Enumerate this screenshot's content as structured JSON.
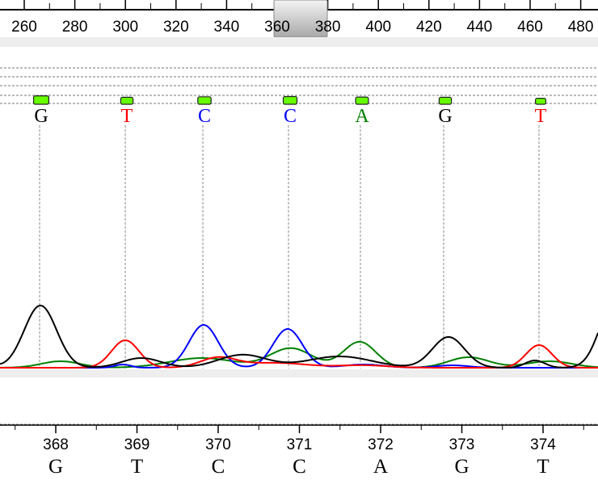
{
  "top_scale": {
    "ticks": [
      "260",
      "280",
      "300",
      "320",
      "340",
      "360",
      "380",
      "400",
      "420",
      "440",
      "460",
      "480"
    ],
    "viewport_window": "scroll-thumb"
  },
  "colors": {
    "A": "#008000",
    "C": "#0000ff",
    "G": "#000000",
    "T": "#ff0000",
    "quality_bar": "#66ff00"
  },
  "base_calls": [
    {
      "base": "G",
      "quality": 0.9
    },
    {
      "base": "T",
      "quality": 0.6
    },
    {
      "base": "C",
      "quality": 0.7
    },
    {
      "base": "C",
      "quality": 0.75
    },
    {
      "base": "A",
      "quality": 0.65
    },
    {
      "base": "G",
      "quality": 0.6
    },
    {
      "base": "T",
      "quality": 0.4
    }
  ],
  "bottom_positions": [
    {
      "pos": "368",
      "base": "G"
    },
    {
      "pos": "369",
      "base": "T"
    },
    {
      "pos": "370",
      "base": "C"
    },
    {
      "pos": "371",
      "base": "C"
    },
    {
      "pos": "372",
      "base": "A"
    },
    {
      "pos": "373",
      "base": "G"
    },
    {
      "pos": "374",
      "base": "T"
    }
  ]
}
